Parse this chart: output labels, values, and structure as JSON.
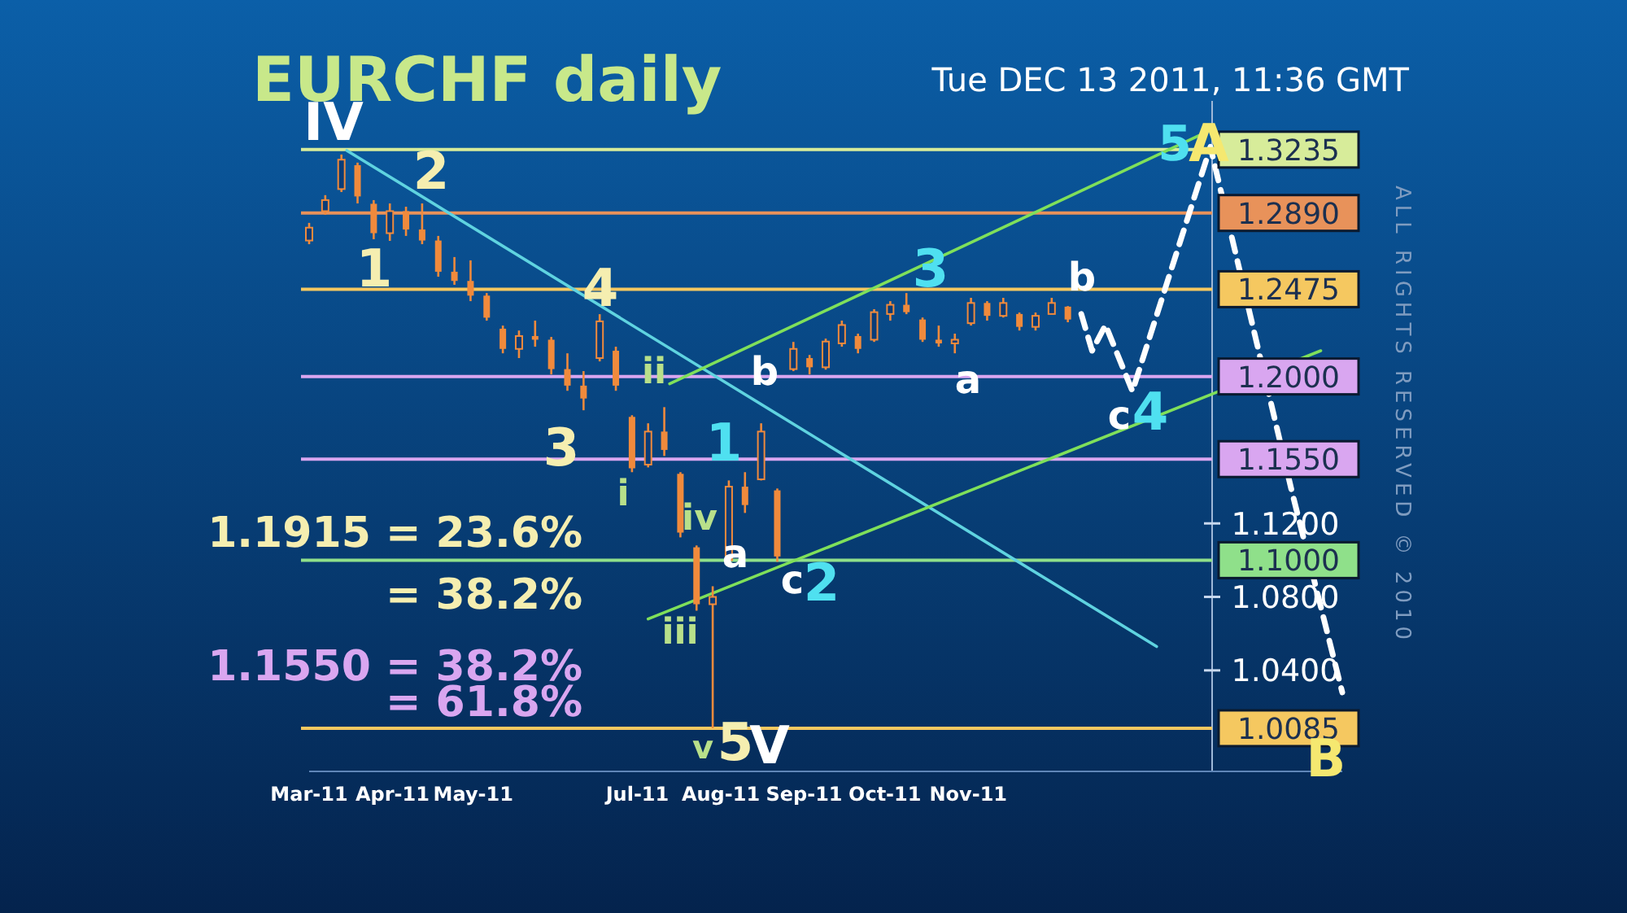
{
  "chart_data": {
    "type": "candlestick",
    "title": "EURCHF daily",
    "subtitle": "Tue DEC 13 2011, 11:36 GMT",
    "color": "#f08a3c",
    "x": [
      "2011-03-01",
      "2011-03-07",
      "2011-03-13",
      "2011-03-19",
      "2011-03-25",
      "2011-03-31",
      "2011-04-06",
      "2011-04-12",
      "2011-04-18",
      "2011-04-24",
      "2011-04-30",
      "2011-05-06",
      "2011-05-12",
      "2011-05-18",
      "2011-05-24",
      "2011-05-30",
      "2011-06-05",
      "2011-06-11",
      "2011-06-17",
      "2011-06-23",
      "2011-06-29",
      "2011-07-05",
      "2011-07-11",
      "2011-07-17",
      "2011-07-23",
      "2011-07-29",
      "2011-08-04",
      "2011-08-10",
      "2011-08-16",
      "2011-08-22",
      "2011-08-28",
      "2011-09-03",
      "2011-09-09",
      "2011-09-15",
      "2011-09-21",
      "2011-09-27",
      "2011-10-03",
      "2011-10-09",
      "2011-10-15",
      "2011-10-21",
      "2011-10-27",
      "2011-11-02",
      "2011-11-08",
      "2011-11-14",
      "2011-11-20",
      "2011-11-26",
      "2011-12-02",
      "2011-12-08"
    ],
    "ohlc": [
      [
        1.274,
        1.2836,
        1.272,
        1.281
      ],
      [
        1.29,
        1.2987,
        1.288,
        1.296
      ],
      [
        1.302,
        1.3208,
        1.3004,
        1.318
      ],
      [
        1.315,
        1.3164,
        1.2942,
        1.298
      ],
      [
        1.294,
        1.296,
        1.2747,
        1.278
      ],
      [
        1.278,
        1.2942,
        1.2738,
        1.29
      ],
      [
        1.29,
        1.2924,
        1.2765,
        1.28
      ],
      [
        1.28,
        1.2942,
        1.272,
        1.274
      ],
      [
        1.274,
        1.2765,
        1.2543,
        1.257
      ],
      [
        1.257,
        1.265,
        1.2499,
        1.252
      ],
      [
        1.252,
        1.2632,
        1.241,
        1.244
      ],
      [
        1.244,
        1.2454,
        1.2304,
        1.232
      ],
      [
        1.226,
        1.2277,
        1.2126,
        1.215
      ],
      [
        1.215,
        1.225,
        1.21,
        1.222
      ],
      [
        1.222,
        1.2304,
        1.2162,
        1.22
      ],
      [
        1.22,
        1.2215,
        1.2011,
        1.204
      ],
      [
        1.204,
        1.2126,
        1.1922,
        1.195
      ],
      [
        1.195,
        1.2029,
        1.1816,
        1.188
      ],
      [
        1.21,
        1.2339,
        1.2082,
        1.23
      ],
      [
        1.214,
        1.2162,
        1.1922,
        1.195
      ],
      [
        1.178,
        1.1789,
        1.1479,
        1.15
      ],
      [
        1.152,
        1.1745,
        1.1505,
        1.17
      ],
      [
        1.17,
        1.1833,
        1.1567,
        1.16
      ],
      [
        1.147,
        1.1479,
        1.1124,
        1.115
      ],
      [
        1.107,
        1.108,
        1.0725,
        1.076
      ],
      [
        1.076,
        1.0858,
        1.0085,
        1.08
      ],
      [
        1.1,
        1.1434,
        1.0991,
        1.14
      ],
      [
        1.14,
        1.1479,
        1.1257,
        1.13
      ],
      [
        1.144,
        1.1745,
        1.1434,
        1.17
      ],
      [
        1.138,
        1.139,
        1.0991,
        1.102
      ],
      [
        1.204,
        1.2188,
        1.2029,
        1.215
      ],
      [
        1.21,
        1.2117,
        1.2011,
        1.205
      ],
      [
        1.205,
        1.2206,
        1.2037,
        1.219
      ],
      [
        1.218,
        1.2304,
        1.2162,
        1.228
      ],
      [
        1.222,
        1.2233,
        1.2126,
        1.215
      ],
      [
        1.22,
        1.2366,
        1.2188,
        1.235
      ],
      [
        1.234,
        1.241,
        1.2304,
        1.239
      ],
      [
        1.239,
        1.2454,
        1.2339,
        1.235
      ],
      [
        1.231,
        1.2321,
        1.2188,
        1.22
      ],
      [
        1.22,
        1.2277,
        1.2162,
        1.218
      ],
      [
        1.218,
        1.2233,
        1.2126,
        1.22
      ],
      [
        1.229,
        1.2428,
        1.2277,
        1.24
      ],
      [
        1.24,
        1.241,
        1.2304,
        1.233
      ],
      [
        1.233,
        1.2428,
        1.2321,
        1.24
      ],
      [
        1.234,
        1.2348,
        1.225,
        1.227
      ],
      [
        1.227,
        1.2348,
        1.225,
        1.233
      ],
      [
        1.234,
        1.2428,
        1.2339,
        1.24
      ],
      [
        1.238,
        1.2383,
        1.2295,
        1.231
      ]
    ],
    "series": [
      {
        "type": "line",
        "color": "#5fd3e0",
        "x": [
          "2011-03-15",
          "2012-01-10"
        ],
        "values": [
          1.323,
          1.053
        ]
      },
      {
        "type": "line",
        "color": "#7fe05a",
        "x": [
          "2011-07-13",
          "2012-01-27"
        ],
        "values": [
          1.196,
          1.332
        ]
      },
      {
        "type": "line",
        "color": "#7fe05a",
        "x": [
          "2011-07-05",
          "2012-03-11"
        ],
        "values": [
          1.068,
          1.214
        ]
      },
      {
        "type": "line",
        "color": "#ffffff",
        "line_style": "dashed",
        "x": [
          "2011-12-13",
          "2011-12-17",
          "2011-12-22",
          "2012-01-01",
          "2012-01-30",
          "2012-02-29",
          "2012-03-19"
        ],
        "values": [
          1.234,
          1.214,
          1.228,
          1.192,
          1.325,
          1.139,
          1.028
        ]
      }
    ],
    "xticks": [
      {
        "value": "2011-03",
        "label": "Mar-11"
      },
      {
        "value": "2011-04",
        "label": "Apr-11"
      },
      {
        "value": "2011-05",
        "label": "May-11"
      },
      {
        "value": "2011-07",
        "label": "Jul-11"
      },
      {
        "value": "2011-08",
        "label": "Aug-11"
      },
      {
        "value": "2011-09",
        "label": "Sep-11"
      },
      {
        "value": "2011-10",
        "label": "Oct-11"
      },
      {
        "value": "2011-11",
        "label": "Nov-11"
      }
    ],
    "xlim": [
      "2011-03-01",
      "2012-03-19"
    ],
    "ylim": [
      0.985,
      1.35
    ],
    "yticks": [
      {
        "value": 1.04,
        "label": "1.0400"
      },
      {
        "value": 1.08,
        "label": "1.0800"
      },
      {
        "value": 1.12,
        "label": "1.1200"
      }
    ],
    "ref_lines": [
      {
        "axis": "y",
        "value": 1.3235,
        "label": "1.3235",
        "color": "#d7ec9a"
      },
      {
        "axis": "y",
        "value": 1.289,
        "label": "1.2890",
        "color": "#e8925a"
      },
      {
        "axis": "y",
        "value": 1.2475,
        "label": "1.2475",
        "color": "#f5c860"
      },
      {
        "axis": "y",
        "value": 1.2,
        "label": "1.2000",
        "color": "#d9a6f0"
      },
      {
        "axis": "y",
        "value": 1.155,
        "label": "1.1550",
        "color": "#d9a6f0"
      },
      {
        "axis": "y",
        "value": 1.1,
        "label": "1.1000",
        "color": "#8fe08a"
      },
      {
        "axis": "y",
        "value": 1.0085,
        "label": "1.0085",
        "color": "#f5c860"
      }
    ],
    "annotations": [
      "1.1915 = 23.6%",
      "= 38.2%",
      "1.1550 = 38.2%",
      "= 61.8%",
      "ALL RIGHTS RESERVED © 2010",
      "IV",
      "2",
      "1",
      "4",
      "3",
      "ii",
      "i",
      "iv",
      "iii",
      "v",
      "5",
      "V",
      "1",
      "a",
      "b",
      "c",
      "2",
      "3",
      "a",
      "b",
      "c",
      "4",
      "5",
      "A",
      "B"
    ]
  }
}
